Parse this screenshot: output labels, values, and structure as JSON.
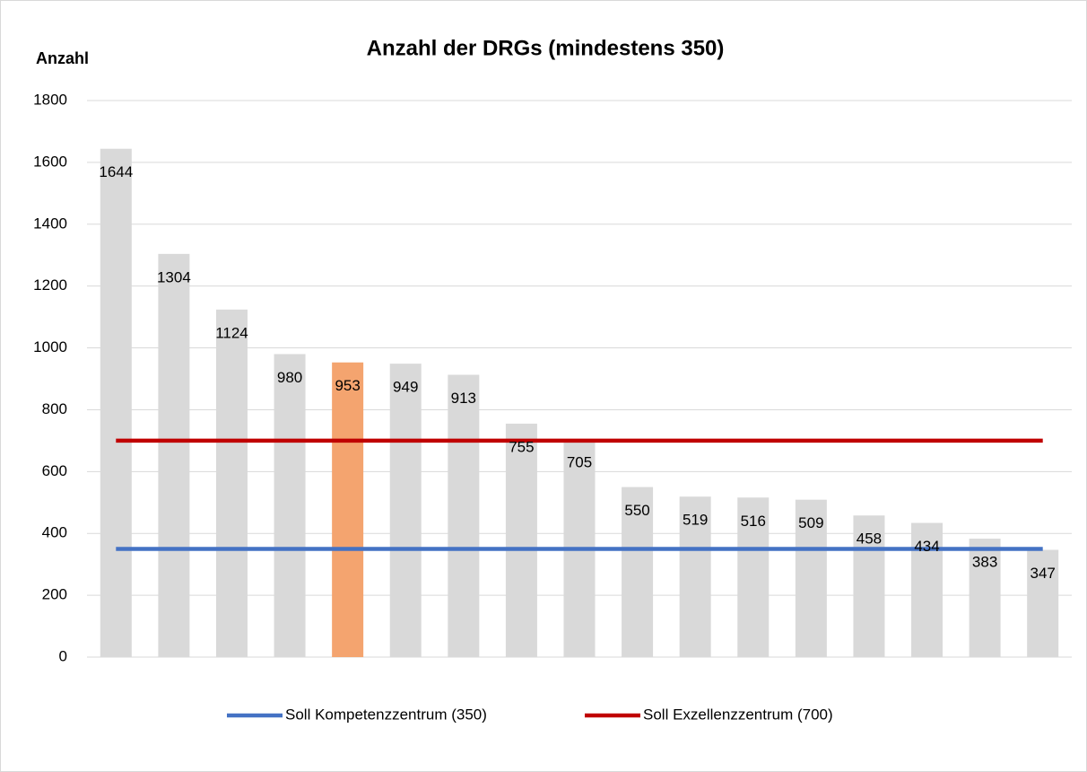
{
  "chart_data": {
    "type": "bar",
    "title": "Anzahl der DRGs (mindestens 350)",
    "y_label": "Anzahl",
    "categories": [
      null,
      null,
      null,
      null,
      null,
      null,
      null,
      null,
      null,
      null,
      null,
      null,
      null,
      null,
      null,
      null,
      null
    ],
    "values": [
      1644,
      1304,
      1124,
      980,
      953,
      949,
      913,
      755,
      705,
      550,
      519,
      516,
      509,
      458,
      434,
      383,
      347
    ],
    "colors": [
      "#d9d9d9",
      "#d9d9d9",
      "#d9d9d9",
      "#d9d9d9",
      "#f4a46f",
      "#d9d9d9",
      "#d9d9d9",
      "#d9d9d9",
      "#d9d9d9",
      "#d9d9d9",
      "#d9d9d9",
      "#d9d9d9",
      "#d9d9d9",
      "#d9d9d9",
      "#d9d9d9",
      "#d9d9d9",
      "#d9d9d9"
    ],
    "series": [
      {
        "name": "Soll Kompetenzzentrum (350)",
        "type": "line",
        "color": "#4472c4",
        "values": [
          350,
          350,
          350,
          350,
          350,
          350,
          350,
          350,
          350,
          350,
          350,
          350,
          350,
          350,
          350,
          350,
          350
        ]
      },
      {
        "name": "Soll Exzellenzzentrum (700)",
        "type": "line",
        "color": "#c00000",
        "values": [
          700,
          700,
          700,
          700,
          700,
          700,
          700,
          700,
          700,
          700,
          700,
          700,
          700,
          700,
          700,
          700,
          700
        ]
      }
    ],
    "ylim": [
      0,
      1800
    ],
    "yticks": [
      0,
      200,
      400,
      600,
      800,
      1000,
      1200,
      1400,
      1600,
      1800
    ],
    "grid": true,
    "legend": "bottom"
  }
}
